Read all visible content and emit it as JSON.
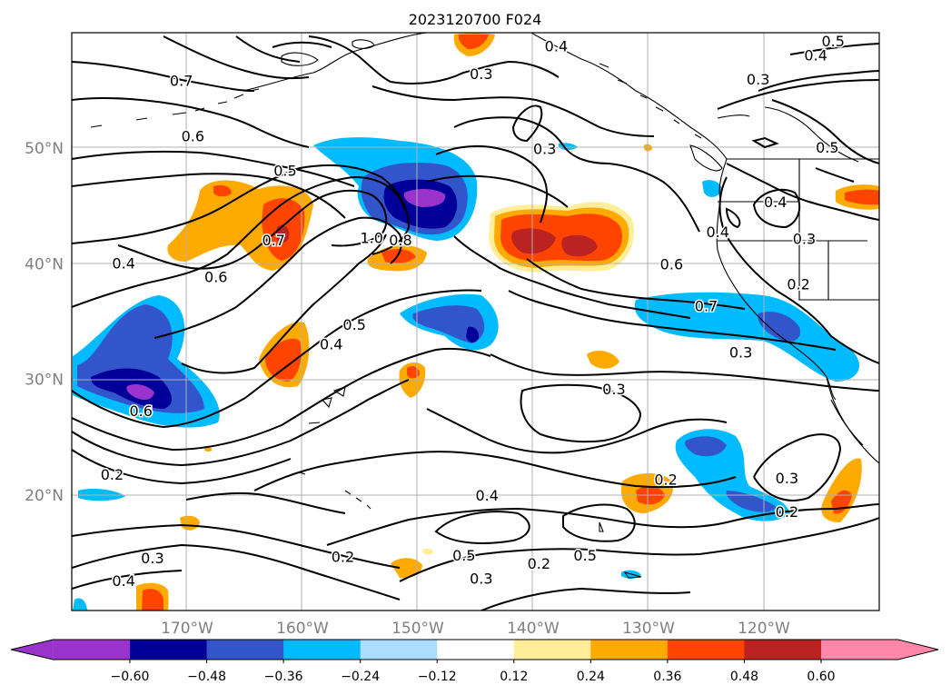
{
  "title": "2023120700 F024",
  "map": {
    "lat_labels": [
      {
        "text": "50°N",
        "lat": 50
      },
      {
        "text": "40°N",
        "lat": 40
      },
      {
        "text": "30°N",
        "lat": 30
      },
      {
        "text": "20°N",
        "lat": 20
      }
    ],
    "lon_labels": [
      {
        "text": "170°W",
        "lon": -170
      },
      {
        "text": "160°W",
        "lon": -160
      },
      {
        "text": "150°W",
        "lon": -150
      },
      {
        "text": "140°W",
        "lon": -140
      },
      {
        "text": "130°W",
        "lon": -130
      },
      {
        "text": "120°W",
        "lon": -120
      }
    ],
    "gridlines": true,
    "colorbar": {
      "ticks": [
        "−0.60",
        "−0.48",
        "−0.36",
        "−0.24",
        "−0.12",
        "0.12",
        "0.24",
        "0.36",
        "0.48",
        "0.60"
      ],
      "colors": [
        "#9933cc",
        "#000099",
        "#3355cc",
        "#00bbff",
        "#aaddff",
        "#ffffff",
        "#ffee99",
        "#ffaa00",
        "#ff4400",
        "#bb2222",
        "#ff88aa"
      ],
      "extend": "both"
    },
    "contour_labels": [
      {
        "text": "0.7",
        "lon": -170.5,
        "lat": 55.8
      },
      {
        "text": "0.6",
        "lon": -169.5,
        "lat": 51.0
      },
      {
        "text": "0.5",
        "lon": -161.5,
        "lat": 48.0
      },
      {
        "text": "0.7",
        "lon": -162.5,
        "lat": 42.0
      },
      {
        "text": "0.6",
        "lon": -167.5,
        "lat": 38.8
      },
      {
        "text": "0.4",
        "lon": -175.5,
        "lat": 40.0
      },
      {
        "text": "1.0",
        "lon": -154.0,
        "lat": 42.2
      },
      {
        "text": "0.8",
        "lon": -151.5,
        "lat": 42.0
      },
      {
        "text": "0.5",
        "lon": -155.5,
        "lat": 34.7
      },
      {
        "text": "0.4",
        "lon": -157.5,
        "lat": 33.0
      },
      {
        "text": "0.6",
        "lon": -174.0,
        "lat": 27.2
      },
      {
        "text": "0.2",
        "lon": -176.5,
        "lat": 21.7
      },
      {
        "text": "0.3",
        "lon": -144.5,
        "lat": 56.4
      },
      {
        "text": "0.3",
        "lon": -139.0,
        "lat": 49.9
      },
      {
        "text": "0.4",
        "lon": -138.0,
        "lat": 58.8
      },
      {
        "text": "0.5",
        "lon": -114.0,
        "lat": 59.2
      },
      {
        "text": "0.4",
        "lon": -115.5,
        "lat": 58.0
      },
      {
        "text": "0.3",
        "lon": -120.5,
        "lat": 55.9
      },
      {
        "text": "0.5",
        "lon": -114.5,
        "lat": 50.0
      },
      {
        "text": "0.4",
        "lon": -124.0,
        "lat": 42.7
      },
      {
        "text": "0.4",
        "lon": -119.0,
        "lat": 45.3
      },
      {
        "text": "0.3",
        "lon": -116.5,
        "lat": 42.1
      },
      {
        "text": "0.2",
        "lon": -117.0,
        "lat": 38.2
      },
      {
        "text": "0.6",
        "lon": -128.0,
        "lat": 39.9
      },
      {
        "text": "0.7",
        "lon": -125.0,
        "lat": 36.3
      },
      {
        "text": "0.3",
        "lon": -122.0,
        "lat": 32.3
      },
      {
        "text": "0.3",
        "lon": -133.0,
        "lat": 29.1
      },
      {
        "text": "0.2",
        "lon": -128.5,
        "lat": 21.3
      },
      {
        "text": "0.3",
        "lon": -118.0,
        "lat": 21.4
      },
      {
        "text": "0.2",
        "lon": -118.0,
        "lat": 18.5
      },
      {
        "text": "0.4",
        "lon": -144.0,
        "lat": 19.9
      },
      {
        "text": "0.5",
        "lon": -146.0,
        "lat": 14.7
      },
      {
        "text": "0.5",
        "lon": -135.5,
        "lat": 14.7
      },
      {
        "text": "0.2",
        "lon": -139.5,
        "lat": 14.0
      },
      {
        "text": "0.3",
        "lon": -144.5,
        "lat": 12.7
      },
      {
        "text": "0.2",
        "lon": -156.5,
        "lat": 14.6
      },
      {
        "text": "0.3",
        "lon": -173.0,
        "lat": 14.5
      },
      {
        "text": "0.4",
        "lon": -175.5,
        "lat": 12.5
      }
    ]
  }
}
